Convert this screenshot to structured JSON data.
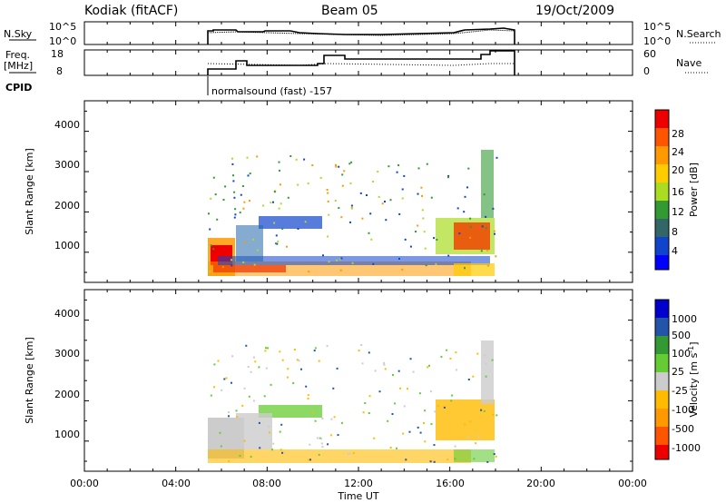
{
  "header": {
    "title": "Kodiak (fitACF)",
    "beam": "Beam 05",
    "date": "19/Oct/2009"
  },
  "top_panels": {
    "nsky_label": "N.Sky",
    "nsky_ticks": [
      "10^5",
      "10^0"
    ],
    "nsearch_label": "N.Search",
    "nsearch_ticks": [
      "10^5",
      "10^0"
    ],
    "freq_label_1": "Freq.",
    "freq_label_2": "[MHz]",
    "freq_ticks": [
      "18",
      "8"
    ],
    "nave_label": "Nave",
    "nave_ticks": [
      "60",
      "0"
    ],
    "cpid_label": "CPID",
    "cpid_text": "normalsound (fast) -157"
  },
  "chart_data": [
    {
      "type": "heatmap",
      "name": "power",
      "ylabel": "Slant Range [km]",
      "xlabel": "",
      "xlim_hours": [
        0,
        24
      ],
      "ylim": [
        180,
        4500
      ],
      "yticks": [
        "4000",
        "3000",
        "2000",
        "1000"
      ],
      "colorbar_label": "Power [dB]",
      "colorbar_ticks": [
        "28",
        "24",
        "20",
        "16",
        "12",
        "8",
        "4"
      ],
      "colorbar_colors": [
        "#ee0000",
        "#ff5500",
        "#ff9900",
        "#ffcc00",
        "#aadd22",
        "#339933",
        "#336666",
        "#1144cc",
        "#0000ff"
      ],
      "data_extent_hours": [
        5.5,
        18.1
      ]
    },
    {
      "type": "heatmap",
      "name": "velocity",
      "ylabel": "Slant Range [km]",
      "xlabel": "Time UT",
      "xlim_hours": [
        0,
        24
      ],
      "ylim": [
        180,
        4500
      ],
      "yticks": [
        "4000",
        "3000",
        "2000",
        "1000"
      ],
      "xticks": [
        "00:00",
        "04:00",
        "08:00",
        "12:00",
        "16:00",
        "20:00",
        "00:00"
      ],
      "colorbar_label": "Velocity [m s",
      "colorbar_label_sup": "-1",
      "colorbar_label_end": "]",
      "colorbar_ticks": [
        "1000",
        "500",
        "100",
        "25",
        "-25",
        "-100",
        "-500",
        "-1000"
      ],
      "colorbar_colors": [
        "#0000cc",
        "#2255aa",
        "#339933",
        "#66cc33",
        "#cccccc",
        "#ffbb00",
        "#ff9900",
        "#ff5500",
        "#ee0000"
      ],
      "data_extent_hours": [
        5.5,
        18.1
      ]
    }
  ]
}
